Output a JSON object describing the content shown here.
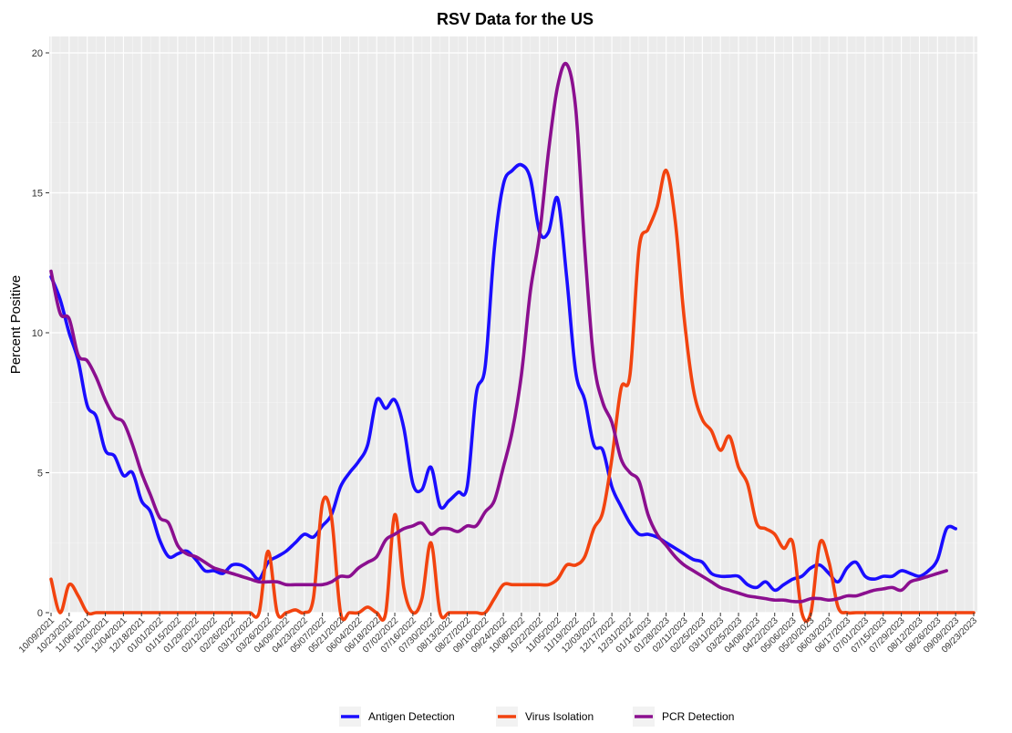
{
  "chart_data": {
    "type": "line",
    "title": "RSV Data for the US",
    "xlabel": "",
    "ylabel": "Percent Positive",
    "ylim": [
      0,
      20
    ],
    "y_ticks": [
      0,
      5,
      10,
      15,
      20
    ],
    "grid": true,
    "legend_position": "bottom",
    "x_tick_labels": [
      "10/09/2021",
      "10/23/2021",
      "11/06/2021",
      "11/20/2021",
      "12/04/2021",
      "12/18/2021",
      "01/01/2022",
      "01/15/2022",
      "01/29/2022",
      "02/12/2022",
      "02/26/2022",
      "03/12/2022",
      "03/26/2022",
      "04/09/2022",
      "04/23/2022",
      "05/07/2022",
      "05/21/2022",
      "06/04/2022",
      "06/18/2022",
      "07/02/2022",
      "07/16/2022",
      "07/30/2022",
      "08/13/2022",
      "08/27/2022",
      "09/10/2022",
      "09/24/2022",
      "10/08/2022",
      "10/22/2022",
      "11/05/2022",
      "11/19/2022",
      "12/03/2022",
      "12/17/2022",
      "12/31/2022",
      "01/14/2023",
      "01/28/2023",
      "02/11/2023",
      "02/25/2023",
      "03/11/2023",
      "03/25/2023",
      "04/08/2023",
      "04/22/2023",
      "05/06/2023",
      "05/20/2023",
      "06/03/2023",
      "06/17/2023",
      "07/01/2023",
      "07/15/2023",
      "07/29/2023",
      "08/12/2023",
      "08/26/2023",
      "09/09/2023",
      "09/23/2023"
    ],
    "series": [
      {
        "name": "Antigen Detection",
        "color": "#1a0dff",
        "values": [
          12.0,
          11.2,
          10.0,
          9.0,
          7.4,
          7.0,
          5.8,
          5.6,
          4.9,
          5.0,
          4.0,
          3.6,
          2.6,
          2.0,
          2.1,
          2.2,
          1.9,
          1.5,
          1.5,
          1.4,
          1.7,
          1.7,
          1.5,
          1.2,
          1.8,
          2.0,
          2.2,
          2.5,
          2.8,
          2.7,
          3.1,
          3.5,
          4.5,
          5.0,
          5.4,
          6.0,
          7.6,
          7.3,
          7.6,
          6.6,
          4.6,
          4.4,
          5.2,
          3.8,
          4.0,
          4.3,
          4.5,
          7.8,
          8.8,
          13.0,
          15.3,
          15.8,
          16.0,
          15.5,
          13.6,
          13.6,
          14.8,
          12.0,
          8.6,
          7.6,
          6.0,
          5.8,
          4.5,
          3.8,
          3.2,
          2.8,
          2.8,
          2.7,
          2.5,
          2.3,
          2.1,
          1.9,
          1.8,
          1.4,
          1.3,
          1.3,
          1.3,
          1.0,
          0.9,
          1.1,
          0.8,
          1.0,
          1.2,
          1.3,
          1.6,
          1.7,
          1.4,
          1.1,
          1.6,
          1.8,
          1.3,
          1.2,
          1.3,
          1.3,
          1.5,
          1.4,
          1.3,
          1.5,
          1.9,
          3.0,
          3.0,
          null,
          null
        ]
      },
      {
        "name": "Virus Isolation",
        "color": "#f2430f",
        "values": [
          1.2,
          0.0,
          1.0,
          0.6,
          0.0,
          0.0,
          0.0,
          0.0,
          0.0,
          0.0,
          0.0,
          0.0,
          0.0,
          0.0,
          0.0,
          0.0,
          0.0,
          0.0,
          0.0,
          0.0,
          0.0,
          0.0,
          0.0,
          0.0,
          2.2,
          0.0,
          0.0,
          0.1,
          0.0,
          0.5,
          3.9,
          3.4,
          0.0,
          0.0,
          0.0,
          0.2,
          0.0,
          0.0,
          3.5,
          0.9,
          0.0,
          0.5,
          2.5,
          0.0,
          0.0,
          0.0,
          0.0,
          0.0,
          0.0,
          0.5,
          1.0,
          1.0,
          1.0,
          1.0,
          1.0,
          1.0,
          1.2,
          1.7,
          1.7,
          2.0,
          3.0,
          3.6,
          5.5,
          8.0,
          8.5,
          13.0,
          13.7,
          14.5,
          15.8,
          14.0,
          10.5,
          8.0,
          6.9,
          6.5,
          5.8,
          6.3,
          5.2,
          4.6,
          3.2,
          3.0,
          2.8,
          2.3,
          2.5,
          0.0,
          0.0,
          2.5,
          1.8,
          0.2,
          0.0,
          0.0,
          0.0,
          0.0,
          0.0,
          0.0,
          0.0,
          0.0,
          0.0,
          0.0,
          0.0,
          0.0,
          0.0,
          0.0,
          0.0
        ]
      },
      {
        "name": "PCR Detection",
        "color": "#8b0f8f",
        "values": [
          12.2,
          10.7,
          10.5,
          9.2,
          9.0,
          8.4,
          7.6,
          7.0,
          6.8,
          6.0,
          5.0,
          4.2,
          3.4,
          3.2,
          2.4,
          2.1,
          2.0,
          1.8,
          1.6,
          1.5,
          1.4,
          1.3,
          1.2,
          1.1,
          1.1,
          1.1,
          1.0,
          1.0,
          1.0,
          1.0,
          1.0,
          1.1,
          1.3,
          1.3,
          1.6,
          1.8,
          2.0,
          2.6,
          2.8,
          3.0,
          3.1,
          3.2,
          2.8,
          3.0,
          3.0,
          2.9,
          3.1,
          3.1,
          3.6,
          4.0,
          5.2,
          6.5,
          8.5,
          11.5,
          13.5,
          16.5,
          18.8,
          19.6,
          18.0,
          13.0,
          9.0,
          7.5,
          6.8,
          5.5,
          5.0,
          4.7,
          3.5,
          2.8,
          2.4,
          2.0,
          1.7,
          1.5,
          1.3,
          1.1,
          0.9,
          0.8,
          0.7,
          0.6,
          0.55,
          0.5,
          0.45,
          0.45,
          0.4,
          0.4,
          0.5,
          0.5,
          0.45,
          0.5,
          0.6,
          0.6,
          0.7,
          0.8,
          0.85,
          0.9,
          0.8,
          1.1,
          1.2,
          1.3,
          1.4,
          1.5,
          null,
          null,
          null
        ]
      }
    ]
  }
}
